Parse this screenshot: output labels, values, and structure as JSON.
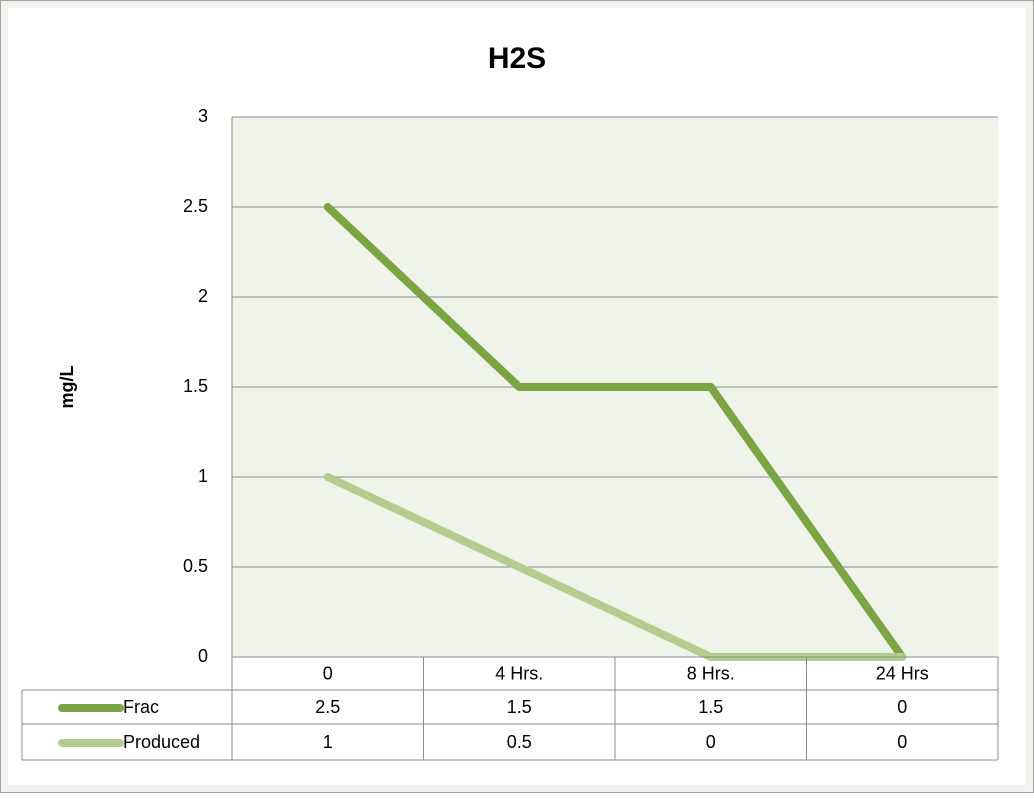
{
  "chart_data": {
    "type": "line",
    "title": "H2S",
    "y_label": "mg/L",
    "categories": [
      "0",
      "4 Hrs.",
      "8 Hrs.",
      "24 Hrs"
    ],
    "series": [
      {
        "name": "Frac",
        "color": "#7ba443",
        "values": [
          2.5,
          1.5,
          1.5,
          0
        ]
      },
      {
        "name": "Produced",
        "color": "#b4cd8f",
        "values": [
          1,
          0.5,
          0,
          0
        ]
      }
    ],
    "ylim": [
      0,
      3
    ],
    "yticks": [
      0,
      0.5,
      1,
      1.5,
      2,
      2.5,
      3
    ],
    "grid": true,
    "data_table": true
  }
}
